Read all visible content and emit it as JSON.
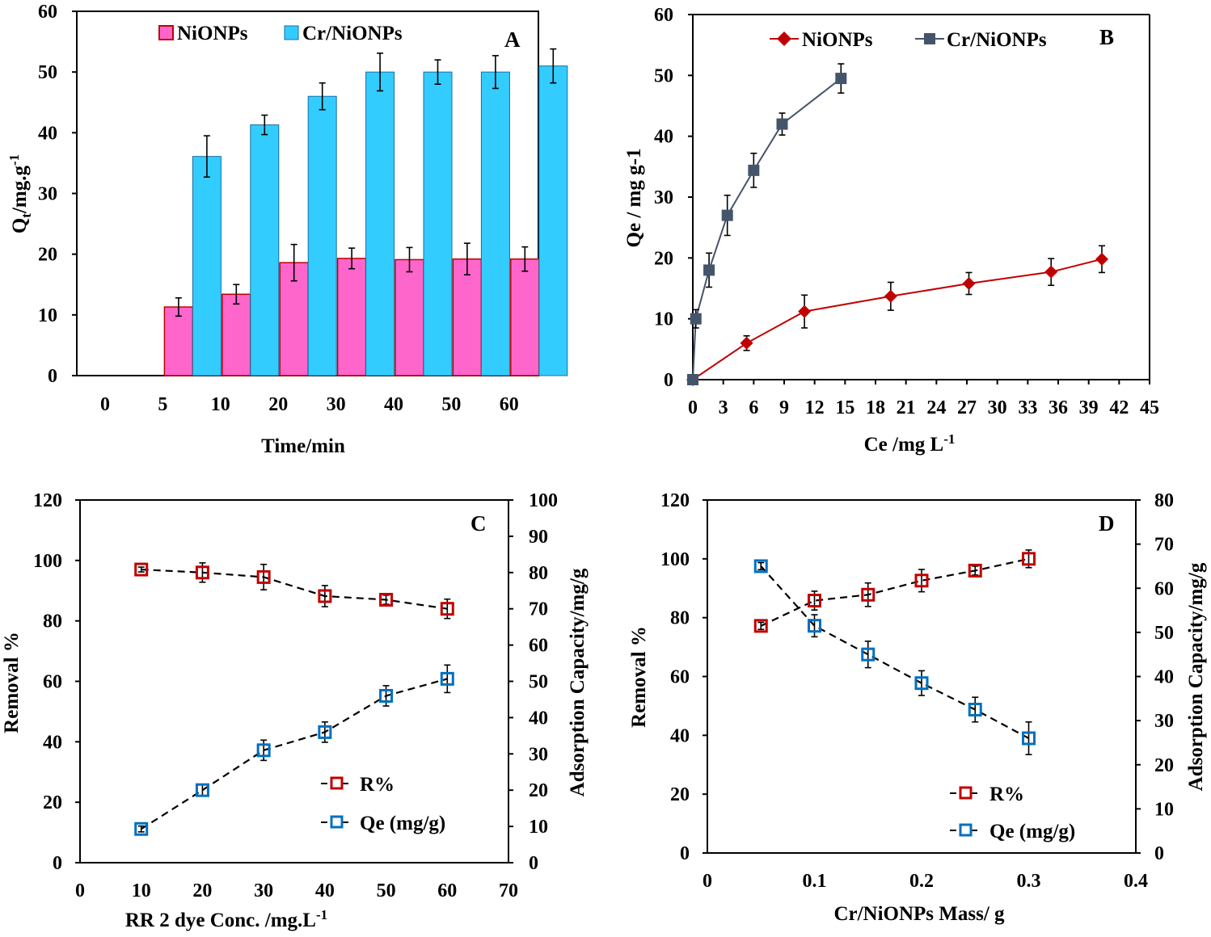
{
  "chart_data": [
    {
      "panel": "A",
      "type": "bar",
      "xlabel": "Time/min",
      "ylabel": {
        "main": "Q",
        "sub": "t",
        "rest": "/mg.g",
        "sup": "-1"
      },
      "ylim": [
        0,
        60
      ],
      "yticks": [
        "0",
        "10",
        "20",
        "30",
        "40",
        "50",
        "60"
      ],
      "categories": [
        "0",
        "5",
        "10",
        "20",
        "30",
        "40",
        "50",
        "60"
      ],
      "series": [
        {
          "name": "NiONPs",
          "color": "#ff66cc",
          "edge": "#c00000",
          "values": [
            0,
            11.3,
            13.4,
            18.6,
            19.3,
            19.1,
            19.2,
            19.2
          ],
          "errors": [
            0,
            1.5,
            1.6,
            3.0,
            1.7,
            2.0,
            2.6,
            2.0
          ]
        },
        {
          "name": "Cr/NiONPs",
          "color": "#33ccff",
          "edge": "#1a6fa0",
          "values": [
            0,
            36.1,
            41.3,
            46.0,
            50.0,
            50.0,
            50.0,
            51.0
          ],
          "errors": [
            0,
            3.4,
            1.6,
            2.2,
            3.1,
            2.0,
            2.7,
            2.8
          ]
        }
      ]
    },
    {
      "panel": "B",
      "type": "line",
      "xlabel": {
        "main": "Ce /mg L",
        "sup": "-1"
      },
      "ylabel": "Qe / mg g-1",
      "xlim": [
        0,
        45
      ],
      "ylim": [
        0,
        60
      ],
      "xticks": [
        "0",
        "3",
        "6",
        "9",
        "12",
        "15",
        "18",
        "21",
        "24",
        "27",
        "30",
        "33",
        "36",
        "39",
        "42",
        "45"
      ],
      "yticks": [
        "0",
        "10",
        "20",
        "30",
        "40",
        "50",
        "60"
      ],
      "series": [
        {
          "name": "NiONPs",
          "color": "#c00000",
          "marker": "diamond",
          "x": [
            0,
            5.3,
            11,
            19.5,
            27.2,
            35.3,
            40.3
          ],
          "y": [
            0,
            6,
            11.2,
            13.7,
            15.8,
            17.7,
            19.8
          ],
          "errors": [
            0,
            1.2,
            2.7,
            2.3,
            1.8,
            2.2,
            2.2
          ]
        },
        {
          "name": "Cr/NiONPs",
          "color": "#44546a",
          "marker": "square",
          "x": [
            0,
            0.3,
            1.6,
            3.4,
            6,
            8.8,
            14.6
          ],
          "y": [
            0,
            10,
            18,
            27,
            34.4,
            42,
            49.5
          ],
          "errors": [
            0,
            1.5,
            2.8,
            3.3,
            2.8,
            1.8,
            2.4
          ]
        }
      ]
    },
    {
      "panel": "C",
      "type": "line",
      "xlabel": {
        "main": "RR 2 dye Conc. /mg.L",
        "sup": "-1"
      },
      "ylabel": "Removal %",
      "y2label": "Adsorption Capacity/mg/g",
      "xlim": [
        0,
        70
      ],
      "ylim": [
        0,
        120
      ],
      "y2lim": [
        0,
        100
      ],
      "xticks": [
        "0",
        "10",
        "20",
        "30",
        "40",
        "50",
        "60",
        "70"
      ],
      "yticks": [
        "0",
        "20",
        "40",
        "60",
        "80",
        "100",
        "120"
      ],
      "y2ticks": [
        "0",
        "10",
        "20",
        "30",
        "40",
        "50",
        "60",
        "70",
        "80",
        "90",
        "100"
      ],
      "series": [
        {
          "name": "R%",
          "color": "#c00000",
          "axis": "left",
          "x": [
            10,
            20,
            30,
            40,
            50,
            60
          ],
          "y": [
            97,
            96,
            94.5,
            88.2,
            87,
            84
          ],
          "errors": [
            0.8,
            3.2,
            4.2,
            3.5,
            1.5,
            3.2
          ]
        },
        {
          "name": "Qe (mg/g)",
          "color": "#0070c0",
          "axis": "right",
          "x": [
            10,
            20,
            30,
            40,
            50,
            60
          ],
          "y": [
            9.3,
            20,
            31,
            36,
            46,
            50.7
          ],
          "errors": [
            0.8,
            1.5,
            2.8,
            2.8,
            2.8,
            3.8
          ]
        }
      ]
    },
    {
      "panel": "D",
      "type": "line",
      "xlabel": "Cr/NiONPs Mass/ g",
      "ylabel": "Removal %",
      "y2label": "Adsorption Capacity/mg/g",
      "xlim": [
        0,
        0.4
      ],
      "ylim": [
        0,
        120
      ],
      "y2lim": [
        0,
        80
      ],
      "xticks": [
        "0",
        "0.1",
        "0.2",
        "0.3",
        "0.4"
      ],
      "yticks": [
        "0",
        "20",
        "40",
        "60",
        "80",
        "100",
        "120"
      ],
      "y2ticks": [
        "0",
        "10",
        "20",
        "30",
        "40",
        "50",
        "60",
        "70",
        "80"
      ],
      "series": [
        {
          "name": "R%",
          "color": "#c00000",
          "axis": "left",
          "x": [
            0.05,
            0.1,
            0.15,
            0.2,
            0.25,
            0.3
          ],
          "y": [
            77.2,
            85.8,
            87.8,
            92.6,
            96,
            100
          ],
          "errors": [
            1.2,
            3.2,
            4.0,
            3.8,
            1.5,
            3.0
          ]
        },
        {
          "name": "Qe (mg/g)",
          "color": "#0070c0",
          "axis": "right",
          "x": [
            0.05,
            0.1,
            0.15,
            0.2,
            0.25,
            0.3
          ],
          "y": [
            65,
            51.5,
            45,
            38.5,
            32.5,
            26
          ],
          "errors": [
            0.8,
            2.5,
            3.0,
            2.8,
            2.8,
            3.7
          ]
        }
      ]
    }
  ]
}
